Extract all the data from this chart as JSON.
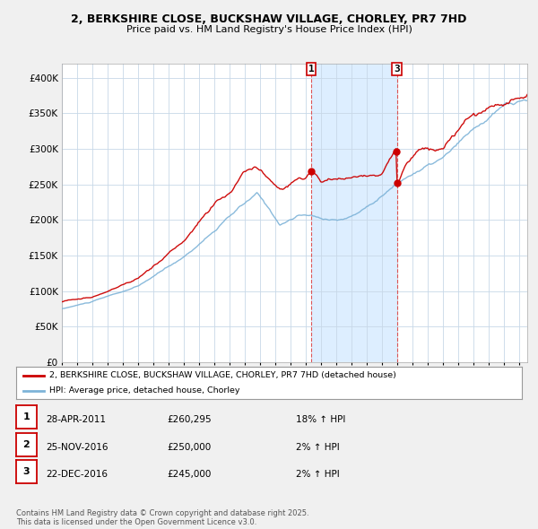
{
  "title": "2, BERKSHIRE CLOSE, BUCKSHAW VILLAGE, CHORLEY, PR7 7HD",
  "subtitle": "Price paid vs. HM Land Registry's House Price Index (HPI)",
  "legend_label_red": "2, BERKSHIRE CLOSE, BUCKSHAW VILLAGE, CHORLEY, PR7 7HD (detached house)",
  "legend_label_blue": "HPI: Average price, detached house, Chorley",
  "red_color": "#cc0000",
  "blue_color": "#7db3d8",
  "shade_color": "#ddeeff",
  "marker1_x": 2011.33,
  "marker2_x": 2016.97,
  "sale1": {
    "year": 2011.33,
    "price": 260295
  },
  "sale2": {
    "year": 2016.9,
    "price": 250000
  },
  "sale3": {
    "year": 2016.97,
    "price": 245000
  },
  "table_rows": [
    [
      "1",
      "28-APR-2011",
      "£260,295",
      "18% ↑ HPI"
    ],
    [
      "2",
      "25-NOV-2016",
      "£250,000",
      "2% ↑ HPI"
    ],
    [
      "3",
      "22-DEC-2016",
      "£245,000",
      "2% ↑ HPI"
    ]
  ],
  "footnote": "Contains HM Land Registry data © Crown copyright and database right 2025.\nThis data is licensed under the Open Government Licence v3.0.",
  "ylim": [
    0,
    420000
  ],
  "yticks": [
    0,
    50000,
    100000,
    150000,
    200000,
    250000,
    300000,
    350000,
    400000
  ],
  "xmin": 1995.0,
  "xmax": 2025.5,
  "background_color": "#f0f0f0",
  "plot_bg_color": "#ffffff"
}
